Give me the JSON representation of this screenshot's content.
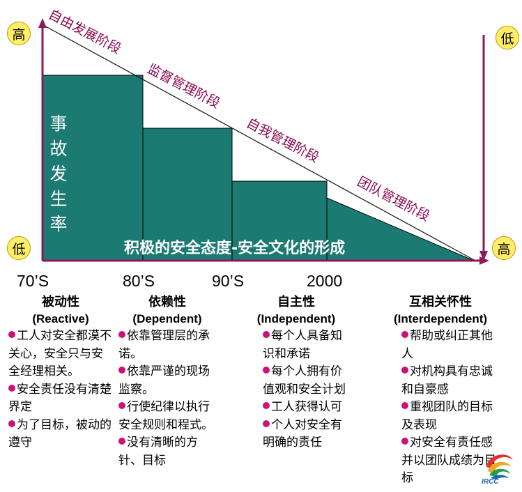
{
  "axis": {
    "left_top": "高",
    "left_bottom": "低",
    "right_top": "低",
    "right_bottom": "高"
  },
  "stages": [
    "自由发展阶段",
    "监督管理阶段",
    "自我管理阶段",
    "团队管理阶段"
  ],
  "rate_label": "事故发生率",
  "bottom_label": "积极的安全态度-安全文化的形成",
  "eras": [
    "70’S",
    "80’S",
    "90’S",
    "2000"
  ],
  "columns": [
    {
      "title": "被动性",
      "subtitle": "(Reactive)",
      "items": [
        "工人对安全都漠不关心，安全只与安全经理相关。",
        "安全责任没有清楚界定",
        "为了目标，被动的遵守"
      ]
    },
    {
      "title": "依赖性",
      "subtitle": "(Dependent)",
      "items": [
        "依靠管理层的承诺。",
        "依靠严谨的现场监察。",
        "行使纪律以执行安全规则和程式。",
        "没有清晰的方针、目标"
      ]
    },
    {
      "title": "自主性",
      "subtitle": "(Independent)",
      "items": [
        "每个人具备知识和承诺",
        "每个人拥有价值观和安全计划",
        "工人获得认可",
        "个人对安全有明确的责任"
      ]
    },
    {
      "title": "互相关怀性",
      "subtitle": "(Interdependent)",
      "items": [
        "帮助或纠正其他人",
        "对机构具有忠诚和自豪感",
        "重视团队的目标及表现",
        "对安全有责任感并以团队成绩为目标"
      ]
    }
  ],
  "logo": {
    "text": "IRCC"
  },
  "colors": {
    "bars": "#1b7a72",
    "stage_text": "#8b0a50",
    "axis": "#8b1a5a",
    "circle": "#ffee66",
    "bullet": "#cc1177"
  }
}
